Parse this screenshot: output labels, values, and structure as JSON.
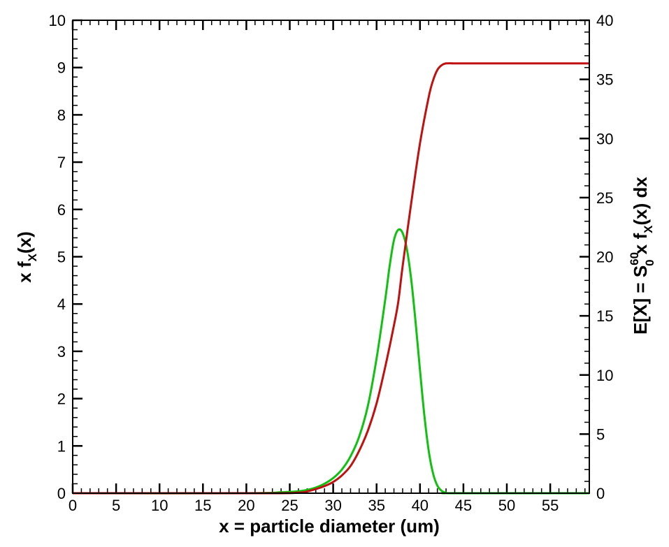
{
  "chart_data": {
    "type": "line",
    "title": "",
    "xlabel": "x = particle diameter (um)",
    "ylabel_left": {
      "main": "x f",
      "sub": "X",
      "tail": "(x)"
    },
    "ylabel_right": {
      "part1": "E[X] = S",
      "sup": "60",
      "sub": "0",
      "part2": " x f",
      "sub2": "X",
      "part3": "(x) dx"
    },
    "xlim": [
      0,
      59.5
    ],
    "ylim_left": [
      0,
      10
    ],
    "ylim_right": [
      0,
      40
    ],
    "x_ticks": [
      0,
      5,
      10,
      15,
      20,
      25,
      30,
      35,
      40,
      45,
      50,
      55
    ],
    "x_tick_labels": [
      "0",
      "5",
      "10",
      "15",
      "20",
      "25",
      "30",
      "35",
      "40",
      "45",
      "50",
      "55"
    ],
    "x_minor_step": 1,
    "y_left_ticks": [
      0,
      1,
      2,
      3,
      4,
      5,
      6,
      7,
      8,
      9,
      10
    ],
    "y_left_tick_labels": [
      "0",
      "1",
      "2",
      "3",
      "4",
      "5",
      "6",
      "7",
      "8",
      "9",
      "10"
    ],
    "y_left_minor_step": 0.2,
    "y_right_ticks": [
      0,
      5,
      10,
      15,
      20,
      25,
      30,
      35,
      40
    ],
    "y_right_tick_labels": [
      "0",
      "5",
      "10",
      "15",
      "20",
      "25",
      "30",
      "35",
      "40"
    ],
    "y_right_minor_step": 1,
    "grid": false,
    "series": [
      {
        "axis": "left",
        "color": "#11c011",
        "x": [
          0,
          20,
          24,
          26,
          27,
          28,
          29,
          30,
          31,
          32,
          33,
          34,
          35,
          36,
          36.5,
          37,
          37.5,
          38,
          38.5,
          39,
          39.5,
          40,
          40.5,
          41,
          41.5,
          42,
          42.5,
          43,
          44,
          59.5
        ],
        "y": [
          0,
          0,
          0.02,
          0.04,
          0.07,
          0.12,
          0.2,
          0.32,
          0.5,
          0.78,
          1.2,
          1.85,
          2.85,
          4.1,
          4.8,
          5.35,
          5.57,
          5.5,
          5.15,
          4.5,
          3.6,
          2.6,
          1.65,
          0.9,
          0.42,
          0.16,
          0.05,
          0.01,
          0,
          0
        ]
      },
      {
        "axis": "right",
        "color": "#c01111",
        "x": [
          0,
          22,
          26,
          27,
          28,
          29,
          30,
          31,
          32,
          33,
          34,
          35,
          36,
          37,
          37.5,
          38,
          39,
          40,
          41,
          41.5,
          42,
          42.5,
          43,
          44,
          45,
          59.5
        ],
        "y": [
          0,
          0,
          0.05,
          0.15,
          0.35,
          0.6,
          0.95,
          1.5,
          2.3,
          3.6,
          5.3,
          7.6,
          10.7,
          14.2,
          16.2,
          19.2,
          24.6,
          29.6,
          33.5,
          34.9,
          35.8,
          36.2,
          36.35,
          36.35,
          36.35,
          36.35
        ]
      }
    ]
  }
}
